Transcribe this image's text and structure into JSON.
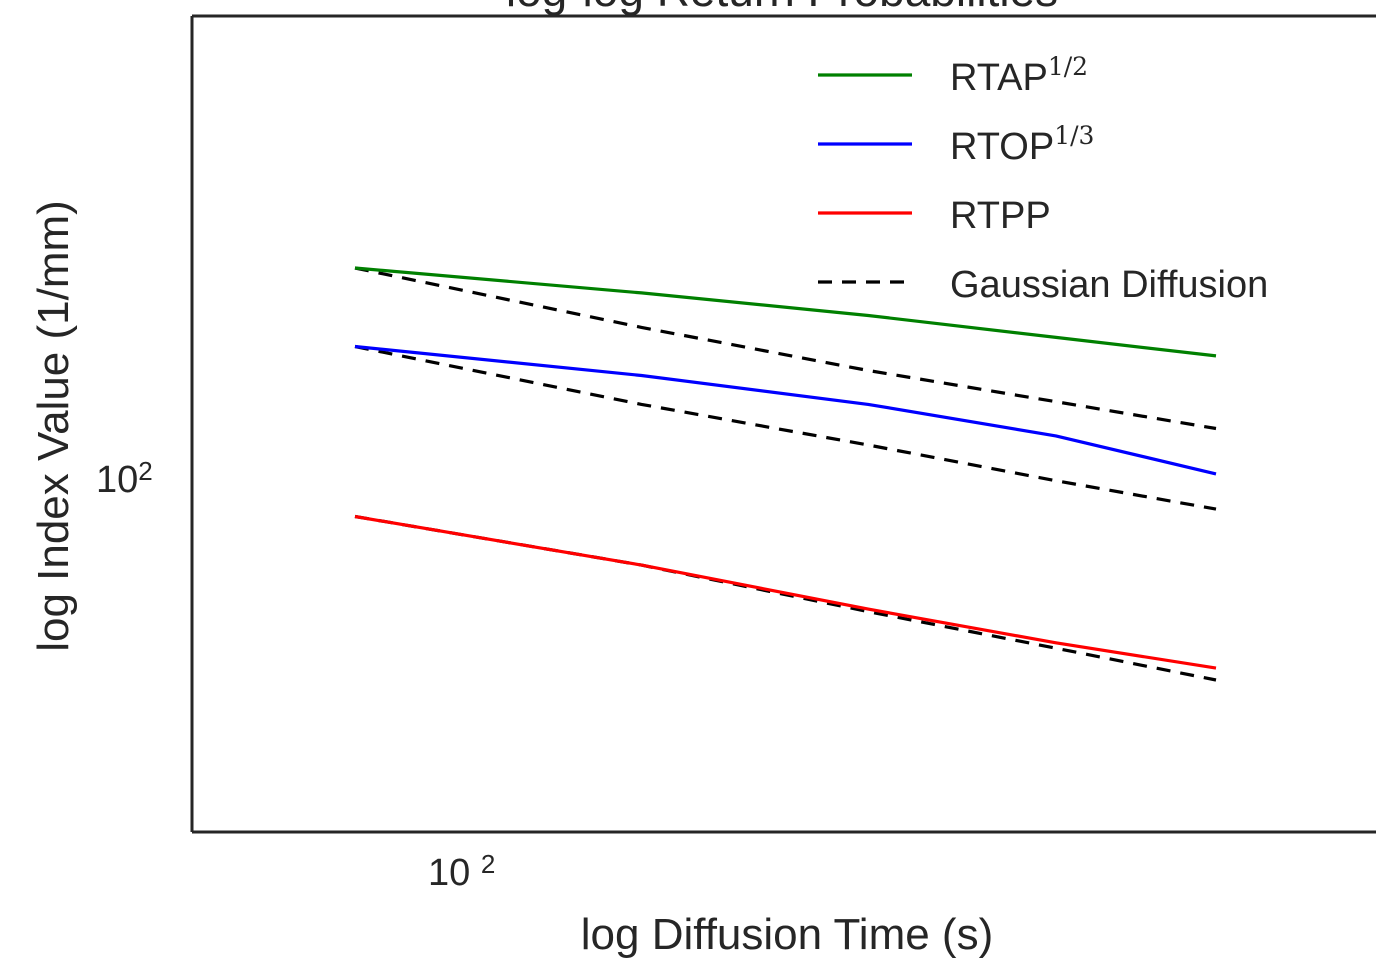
{
  "chart_data": {
    "type": "line",
    "title": "log-log Return Probabilities",
    "xlabel": "log Diffusion Time (s)",
    "ylabel": "log Index Value (1/mm)",
    "xscale": "log",
    "yscale": "log",
    "xlim": [
      0.0175,
      0.055
    ],
    "ylim": [
      55,
      360
    ],
    "xticks": [
      {
        "value": 0.01,
        "base": "10",
        "exp": "2"
      }
    ],
    "yticks": [
      {
        "value": 100,
        "base": "10",
        "exp": "2"
      }
    ],
    "x": [
      0.025,
      0.0325,
      0.04,
      0.0475,
      0.055
    ],
    "series": [
      {
        "name": "RTAP",
        "sup": "1/2",
        "color": "#008000",
        "dash": "solid",
        "values": [
          188.0,
          175.0,
          164.0,
          154.0,
          146.0
        ]
      },
      {
        "name": "RTOP",
        "sup": "1/3",
        "color": "#0000ff",
        "dash": "solid",
        "values": [
          150.0,
          138.0,
          127.0,
          116.0,
          104.0
        ]
      },
      {
        "name": "RTPP",
        "sup": "",
        "color": "#ff0000",
        "dash": "solid",
        "values": [
          92.0,
          80.0,
          70.5,
          64.0,
          59.5
        ]
      },
      {
        "name": "",
        "color": "#000000",
        "dash": "dashed",
        "values": [
          188.0,
          158.5,
          140.0,
          128.0,
          118.5
        ]
      },
      {
        "name": "",
        "color": "#000000",
        "dash": "dashed",
        "values": [
          150.0,
          127.0,
          113.0,
          102.0,
          94.0
        ]
      },
      {
        "name": "Gaussian Diffusion",
        "sup": "",
        "color": "#000000",
        "dash": "dashed",
        "values": [
          92.0,
          80.0,
          70.0,
          63.0,
          57.5
        ]
      }
    ],
    "legend": {
      "placement": "upper-right",
      "entries": [
        "RTAP",
        "RTOP",
        "RTPP",
        "Gaussian Diffusion"
      ]
    },
    "grid": false
  }
}
